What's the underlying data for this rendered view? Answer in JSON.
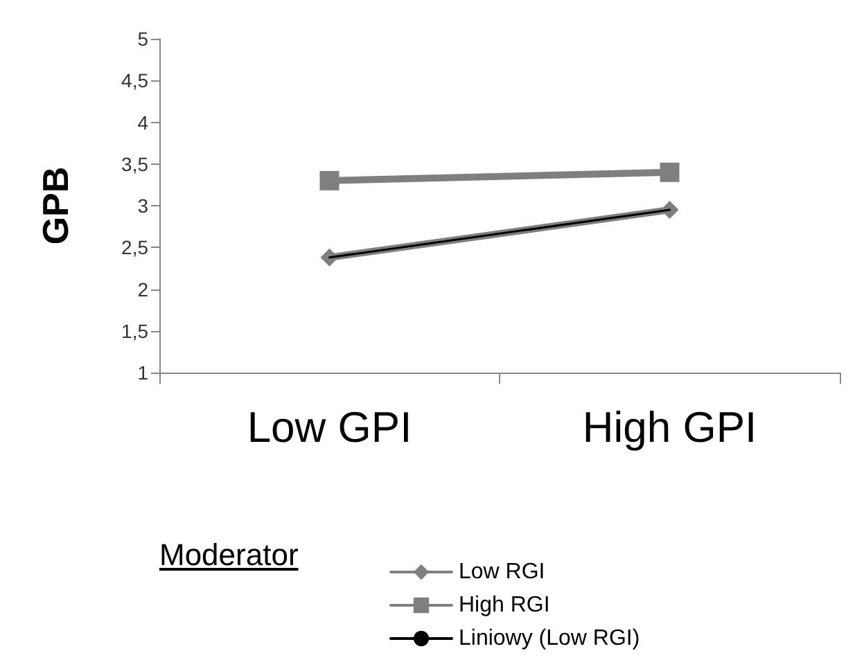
{
  "chart_data": {
    "type": "line",
    "ylabel": "GPB",
    "legend_title": "Moderator",
    "categories": [
      "Low GPI",
      "High GPI"
    ],
    "series": [
      {
        "name": "Low RGI",
        "color": "#7f7f7f",
        "values": [
          2.38,
          2.95
        ],
        "marker": "diamond"
      },
      {
        "name": "High RGI",
        "color": "#7f7f7f",
        "values": [
          3.3,
          3.4
        ],
        "marker": "square"
      },
      {
        "name": "Liniowy (Low RGI)",
        "color": "#000000",
        "values": [
          2.38,
          2.95
        ],
        "marker": "none"
      }
    ],
    "ylim": [
      1,
      5
    ],
    "yticks": [
      1,
      {
        "value": 1.5,
        "label": "1,5"
      },
      2,
      {
        "value": 2.5,
        "label": "2,5"
      },
      3,
      {
        "value": 3.5,
        "label": "3,5"
      },
      4,
      {
        "value": 4.5,
        "label": "4,5"
      },
      5
    ],
    "grid": false,
    "legend": "bottom"
  }
}
